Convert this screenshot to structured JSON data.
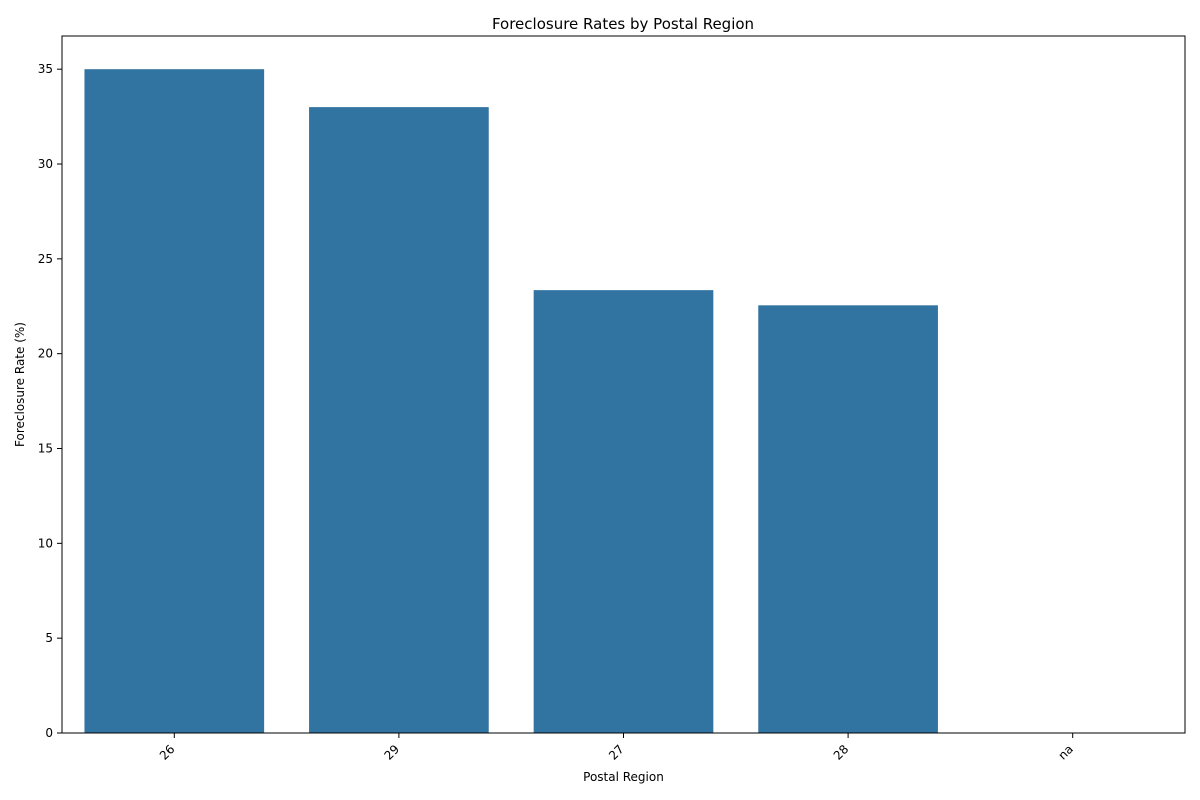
{
  "chart_data": {
    "type": "bar",
    "title": "Foreclosure Rates by Postal Region",
    "xlabel": "Postal Region",
    "ylabel": "Foreclosure Rate (%)",
    "categories": [
      "26",
      "29",
      "27",
      "28",
      "na"
    ],
    "values": [
      35.0,
      33.0,
      23.35,
      22.55,
      0
    ],
    "ylim": [
      0,
      36.75
    ],
    "yticks": [
      0,
      5,
      10,
      15,
      20,
      25,
      30,
      35
    ],
    "ytick_labels": [
      "0",
      "5",
      "10",
      "15",
      "20",
      "25",
      "30",
      "35"
    ],
    "x_tick_rotation": 45,
    "bar_color": "#3274a1",
    "grid": false,
    "legend": "none"
  }
}
